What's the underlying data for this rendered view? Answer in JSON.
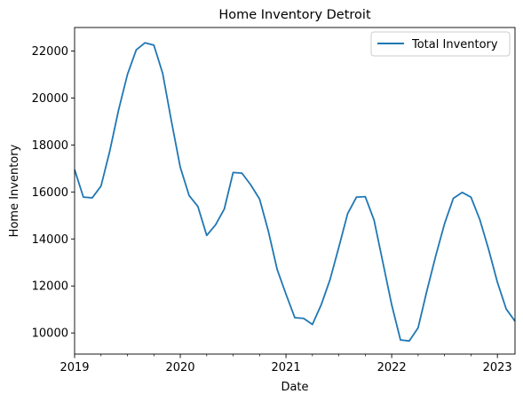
{
  "chart_data": {
    "type": "line",
    "title": "Home Inventory Detroit",
    "xlabel": "Date",
    "ylabel": "Home Inventory",
    "xlim": [
      "2019-01",
      "2023-03"
    ],
    "ylim": [
      9100,
      23000
    ],
    "grid": false,
    "legend_position": "top-right",
    "x_ticks": [
      {
        "date": "2019-01",
        "label": "2019"
      },
      {
        "date": "2020-01",
        "label": "2020"
      },
      {
        "date": "2021-01",
        "label": "2021"
      },
      {
        "date": "2022-01",
        "label": "2022"
      },
      {
        "date": "2023-01",
        "label": "2023"
      }
    ],
    "y_ticks": [
      {
        "value": 10000,
        "label": "10000"
      },
      {
        "value": 12000,
        "label": "12000"
      },
      {
        "value": 14000,
        "label": "14000"
      },
      {
        "value": 16000,
        "label": "16000"
      },
      {
        "value": 18000,
        "label": "18000"
      },
      {
        "value": 20000,
        "label": "20000"
      },
      {
        "value": 22000,
        "label": "22000"
      }
    ],
    "x": [
      "2019-01",
      "2019-02",
      "2019-03",
      "2019-04",
      "2019-05",
      "2019-06",
      "2019-07",
      "2019-08",
      "2019-09",
      "2019-10",
      "2019-11",
      "2019-12",
      "2020-01",
      "2020-02",
      "2020-03",
      "2020-04",
      "2020-05",
      "2020-06",
      "2020-07",
      "2020-08",
      "2020-09",
      "2020-10",
      "2020-11",
      "2020-12",
      "2021-01",
      "2021-02",
      "2021-03",
      "2021-04",
      "2021-05",
      "2021-06",
      "2021-07",
      "2021-08",
      "2021-09",
      "2021-10",
      "2021-11",
      "2021-12",
      "2022-01",
      "2022-02",
      "2022-03",
      "2022-04",
      "2022-05",
      "2022-06",
      "2022-07",
      "2022-08",
      "2022-09",
      "2022-10",
      "2022-11",
      "2022-12",
      "2023-01",
      "2023-02",
      "2023-03"
    ],
    "series": [
      {
        "name": "Total Inventory",
        "color": "#1f77b4",
        "values": [
          16950,
          15780,
          15750,
          16250,
          17750,
          19500,
          21000,
          22050,
          22350,
          22250,
          21050,
          19000,
          17050,
          15850,
          15380,
          14150,
          14600,
          15280,
          16830,
          16800,
          16300,
          15700,
          14330,
          12700,
          11650,
          10650,
          10620,
          10360,
          11200,
          12270,
          13650,
          15080,
          15780,
          15800,
          14800,
          13000,
          11200,
          9700,
          9660,
          10220,
          11800,
          13280,
          14650,
          15730,
          15980,
          15780,
          14830,
          13560,
          12160,
          11020,
          10500
        ]
      }
    ]
  }
}
